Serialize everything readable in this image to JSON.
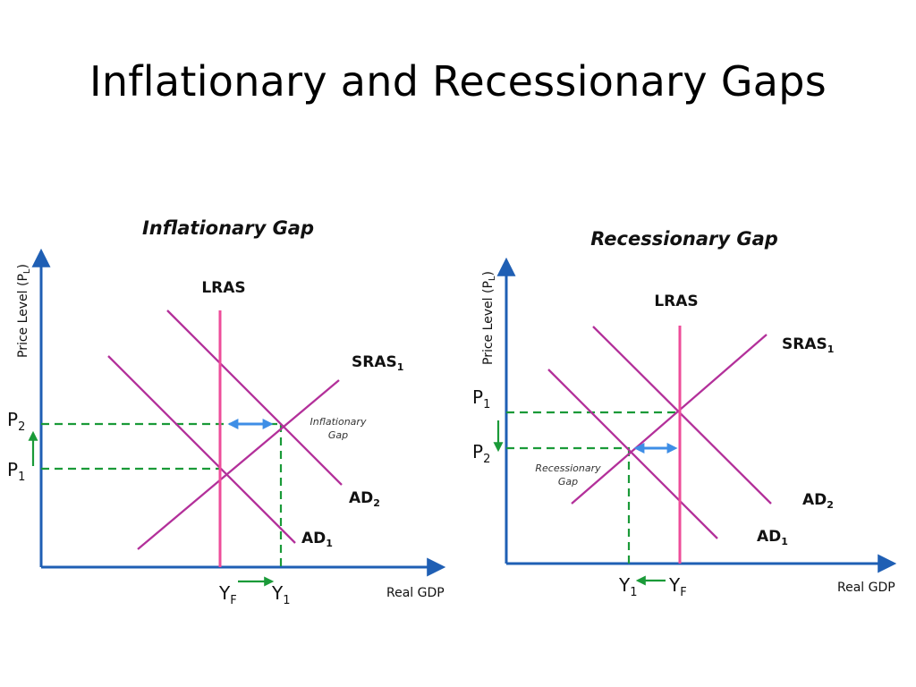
{
  "slide": {
    "title": "Inflationary and Recessionary Gaps"
  },
  "colors": {
    "axis": "#1f5fb4",
    "curve": "#b3309a",
    "lras": "#ee4c9a",
    "dashed": "#1a9a38",
    "gap_arrow": "#3e8ee6",
    "move_arrow": "#1a9a38"
  },
  "inflationary": {
    "title": "Inflationary Gap",
    "y_axis_label": "Price Level (P",
    "y_axis_sub": "L",
    "y_axis_close": ")",
    "x_axis_label": "Real GDP",
    "lras_label": "LRAS",
    "sras_label": "SRAS",
    "sras_sub": "1",
    "ad2_label": "AD",
    "ad2_sub": "2",
    "ad1_label": "AD",
    "ad1_sub": "1",
    "p2_label": "P",
    "p2_sub": "2",
    "p1_label": "P",
    "p1_sub": "1",
    "yf_label": "Y",
    "yf_sub": "F",
    "y1_label": "Y",
    "y1_sub": "1",
    "gap_line1": "Inflationary",
    "gap_line2": "Gap"
  },
  "recessionary": {
    "title": "Recessionary Gap",
    "y_axis_label": "Price Level (P",
    "y_axis_sub": "L",
    "y_axis_close": ")",
    "x_axis_label": "Real GDP",
    "lras_label": "LRAS",
    "sras_label": "SRAS",
    "sras_sub": "1",
    "ad2_label": "AD",
    "ad2_sub": "2",
    "ad1_label": "AD",
    "ad1_sub": "1",
    "p1_label": "P",
    "p1_sub": "1",
    "p2_label": "P",
    "p2_sub": "2",
    "y1_label": "Y",
    "y1_sub": "1",
    "yf_label": "Y",
    "yf_sub": "F",
    "gap_line1": "Recessionary",
    "gap_line2": "Gap"
  }
}
